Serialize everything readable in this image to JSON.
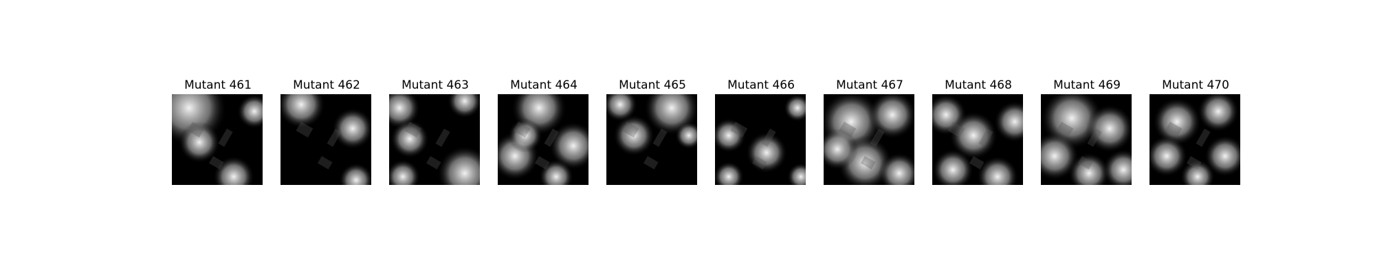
{
  "figure": {
    "panels": [
      {
        "title": "Mutant 461"
      },
      {
        "title": "Mutant 462"
      },
      {
        "title": "Mutant 463"
      },
      {
        "title": "Mutant 464"
      },
      {
        "title": "Mutant 465"
      },
      {
        "title": "Mutant 466"
      },
      {
        "title": "Mutant 467"
      },
      {
        "title": "Mutant 468"
      },
      {
        "title": "Mutant 469"
      },
      {
        "title": "Mutant 470"
      }
    ],
    "colors": {
      "background": "#ffffff",
      "mask": "#000000",
      "highlight": "#ffffff"
    }
  }
}
